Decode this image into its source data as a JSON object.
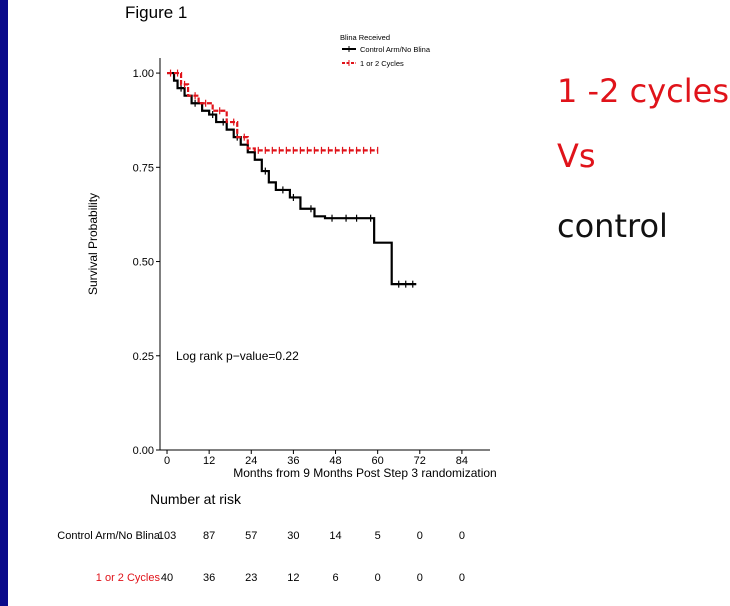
{
  "figure_label": "Figure 1",
  "side_text": [
    {
      "text": "1 -2 cycles",
      "color": "#e0131a"
    },
    {
      "text": "Vs",
      "color": "#e0131a"
    },
    {
      "text": "control",
      "color": "#111111"
    }
  ],
  "chart_data": {
    "type": "line",
    "xlabel": "Months from 9 Months Post Step 3 randomization",
    "ylabel": "Survival Probability",
    "xlim": [
      -2,
      92
    ],
    "ylim": [
      0,
      1.04
    ],
    "x_ticks": [
      0,
      12,
      24,
      36,
      48,
      60,
      72,
      84
    ],
    "y_ticks": [
      0.0,
      0.25,
      0.5,
      0.75,
      1.0
    ],
    "y_tick_labels": [
      "0.00",
      "0.25",
      "0.50",
      "0.75",
      "1.00"
    ],
    "legend_title": "Blina Received",
    "legend_position": "top-right",
    "annotation": "Log rank p−value=0.22",
    "series": [
      {
        "name": "Control Arm/No Blina",
        "color": "#000000",
        "steps": [
          [
            0,
            1.0
          ],
          [
            2,
            0.98
          ],
          [
            3,
            0.96
          ],
          [
            5,
            0.94
          ],
          [
            7,
            0.92
          ],
          [
            10,
            0.9
          ],
          [
            12,
            0.89
          ],
          [
            14,
            0.87
          ],
          [
            17,
            0.85
          ],
          [
            19,
            0.83
          ],
          [
            21,
            0.81
          ],
          [
            23,
            0.79
          ],
          [
            25,
            0.77
          ],
          [
            27,
            0.74
          ],
          [
            29,
            0.71
          ],
          [
            31,
            0.69
          ],
          [
            35,
            0.67
          ],
          [
            38,
            0.64
          ],
          [
            42,
            0.62
          ],
          [
            45,
            0.615
          ],
          [
            59,
            0.55
          ],
          [
            64,
            0.44
          ],
          [
            71,
            0.44
          ]
        ],
        "censor_x": [
          4,
          8,
          13,
          16,
          20,
          28,
          33,
          36,
          41,
          47,
          51,
          54,
          58,
          66,
          68,
          70
        ]
      },
      {
        "name": "1 or 2 Cycles",
        "color": "#e0131a",
        "steps": [
          [
            0,
            1.0
          ],
          [
            4,
            0.97
          ],
          [
            6,
            0.94
          ],
          [
            9,
            0.92
          ],
          [
            13,
            0.9
          ],
          [
            17,
            0.87
          ],
          [
            20,
            0.83
          ],
          [
            23,
            0.8
          ],
          [
            25,
            0.795
          ],
          [
            60,
            0.795
          ]
        ],
        "censor_x": [
          1,
          3,
          5,
          8,
          11,
          15,
          19,
          22,
          26,
          28,
          30,
          32,
          34,
          36,
          38,
          40,
          42,
          44,
          46,
          48,
          50,
          52,
          54,
          56,
          58,
          60
        ]
      }
    ],
    "risk_table": {
      "title": "Number at risk",
      "times": [
        0,
        12,
        24,
        36,
        48,
        60,
        72,
        84
      ],
      "rows": [
        {
          "label": "Control Arm/No Blina",
          "color": "#000000",
          "values": [
            103,
            87,
            57,
            30,
            14,
            5,
            0,
            0
          ]
        },
        {
          "label": "1 or 2 Cycles",
          "color": "#e0131a",
          "values": [
            40,
            36,
            23,
            12,
            6,
            0,
            0,
            0
          ]
        }
      ]
    }
  }
}
